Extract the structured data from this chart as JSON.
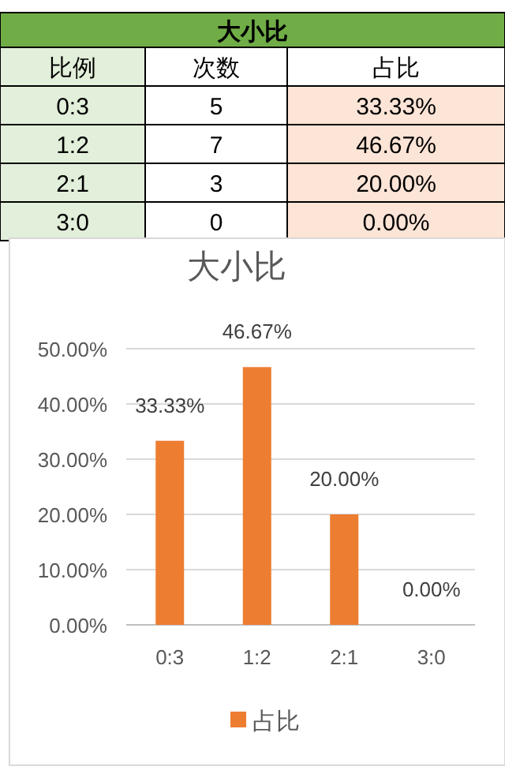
{
  "chart_data": [
    {
      "type": "other",
      "title": "大小比",
      "annotations": [
        "比例",
        "次数",
        "占比",
        "0:3",
        "5",
        "33.33%",
        "1:2",
        "7",
        "46.67%",
        "2:1",
        "3",
        "20.00%",
        "3:0",
        "0",
        "0.00%"
      ]
    },
    {
      "type": "bar",
      "title": "大小比",
      "categories": [
        "0:3",
        "1:2",
        "2:1",
        "3:0"
      ],
      "series": [
        {
          "name": "占比",
          "color": "#ed7d31",
          "values": [
            33.33,
            46.67,
            20.0,
            0.0
          ],
          "value_labels": [
            "33.33%",
            "46.67%",
            "20.00%",
            "0.00%"
          ]
        }
      ],
      "ylim": [
        0,
        50
      ],
      "yticks": [
        {
          "value": 0,
          "label": "0.00%"
        },
        {
          "value": 10,
          "label": "10.00%"
        },
        {
          "value": 20,
          "label": "20.00%"
        },
        {
          "value": 30,
          "label": "30.00%"
        },
        {
          "value": 40,
          "label": "40.00%"
        },
        {
          "value": 50,
          "label": "50.00%"
        }
      ],
      "grid": "y",
      "legend": "bottom"
    }
  ]
}
